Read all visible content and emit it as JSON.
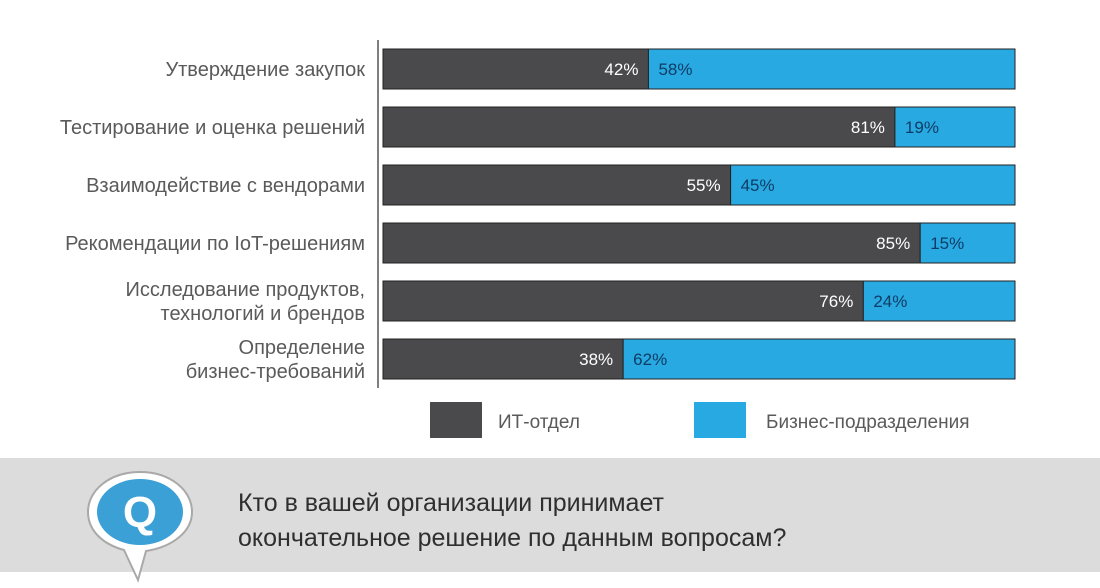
{
  "chart_data": {
    "type": "bar",
    "stacked": true,
    "orientation": "horizontal",
    "categories": [
      [
        "Утверждение закупок"
      ],
      [
        "Тестирование и оценка решений"
      ],
      [
        "Взаимодействие с вендорами"
      ],
      [
        "Рекомендации по IoT-решениям"
      ],
      [
        "Исследование продуктов,",
        "технологий и брендов"
      ],
      [
        "Определение",
        "бизнес-требований"
      ]
    ],
    "series": [
      {
        "name": "ИТ-отдел",
        "color": "#4a4a4c",
        "label_color": "#ffffff",
        "values": [
          42,
          81,
          55,
          85,
          76,
          38
        ],
        "labels": [
          "42%",
          "81%",
          "55%",
          "85%",
          "76%",
          "38%"
        ]
      },
      {
        "name": "Бизнес-подразделения",
        "color": "#29a9e1",
        "label_color": "#0d3d66",
        "values": [
          58,
          19,
          45,
          15,
          24,
          62
        ],
        "labels": [
          "58%",
          "19%",
          "45%",
          "15%",
          "24%",
          "62%"
        ]
      }
    ],
    "xlim": [
      0,
      100
    ],
    "grid": false,
    "legend": "bottom"
  },
  "footer": {
    "badge_letter": "Q",
    "question_lines": [
      "Кто в вашей организации принимает",
      "окончательное решение по данным вопросам?"
    ],
    "background": "#dcdcdc",
    "badge_color": "#3aa0d6"
  }
}
